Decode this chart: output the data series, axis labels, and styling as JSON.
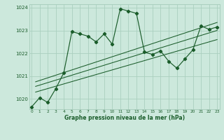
{
  "title": "Graphe pression niveau de la mer (hPa)",
  "bg_color": "#cce8dc",
  "grid_color": "#aacfbf",
  "line_color": "#1a5c2a",
  "xlim": [
    -0.3,
    23.3
  ],
  "ylim": [
    1019.55,
    1024.15
  ],
  "yticks": [
    1020,
    1021,
    1022,
    1023,
    1024
  ],
  "xticks": [
    0,
    1,
    2,
    3,
    4,
    5,
    6,
    7,
    8,
    9,
    10,
    11,
    12,
    13,
    14,
    15,
    16,
    17,
    18,
    19,
    20,
    21,
    22,
    23
  ],
  "main_series": [
    1019.65,
    1020.05,
    1019.85,
    1020.45,
    1021.15,
    1022.95,
    1022.85,
    1022.75,
    1022.5,
    1022.85,
    1022.4,
    1023.95,
    1023.85,
    1023.75,
    1022.05,
    1021.95,
    1022.1,
    1021.65,
    1021.35,
    1021.75,
    1022.15,
    1023.2,
    1023.05,
    1023.15
  ],
  "trend_lines": [
    {
      "x0": 0.5,
      "y0": 1020.3,
      "x1": 23,
      "y1": 1022.6
    },
    {
      "x0": 0.5,
      "y0": 1020.55,
      "x1": 23,
      "y1": 1023.0
    },
    {
      "x0": 0.5,
      "y0": 1020.75,
      "x1": 23,
      "y1": 1023.35
    }
  ]
}
